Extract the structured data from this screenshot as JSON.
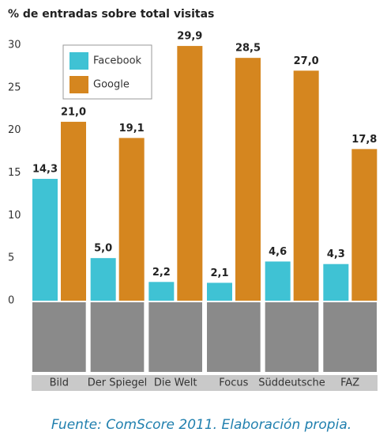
{
  "chart_data": {
    "type": "bar",
    "title": "% de entradas sobre total visitas",
    "source": "Fuente: ComScore 2011. Elaboración propia.",
    "categories": [
      "Bild",
      "Der Spiegel",
      "Die Welt",
      "Focus",
      "Süddeutsche",
      "FAZ"
    ],
    "series": [
      {
        "name": "Facebook",
        "color": "#3fc2d4",
        "values": [
          14.3,
          5.0,
          2.2,
          2.1,
          4.6,
          4.3
        ],
        "value_labels": [
          "14,3",
          "5,0",
          "2,2",
          "2,1",
          "4,6",
          "4,3"
        ]
      },
      {
        "name": "Google",
        "color": "#d5861f",
        "values": [
          21.0,
          19.1,
          29.9,
          28.5,
          27.0,
          17.8
        ],
        "value_labels": [
          "21,0",
          "19,1",
          "29,9",
          "28,5",
          "27,0",
          "17,8"
        ]
      }
    ],
    "ylim": [
      0,
      30
    ],
    "yticks": [
      0,
      5,
      10,
      15,
      20,
      25,
      30
    ]
  }
}
